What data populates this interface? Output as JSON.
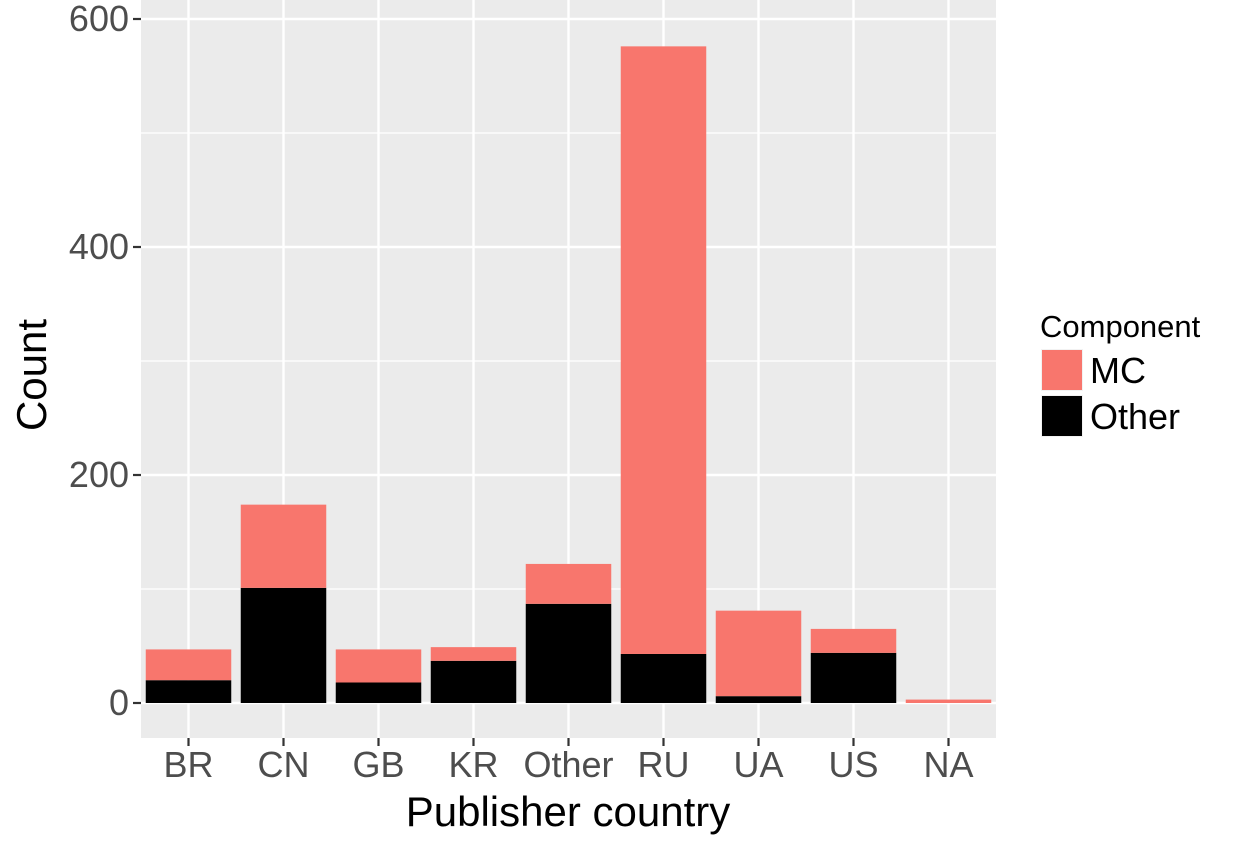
{
  "chart_data": {
    "type": "bar",
    "stacked": true,
    "categories": [
      "BR",
      "CN",
      "GB",
      "KR",
      "Other",
      "RU",
      "UA",
      "US",
      "NA"
    ],
    "series": [
      {
        "name": "Other",
        "values": [
          20,
          101,
          18,
          37,
          87,
          43,
          6,
          44,
          0
        ]
      },
      {
        "name": "MC",
        "values": [
          27,
          73,
          29,
          12,
          35,
          533,
          75,
          21,
          3
        ]
      }
    ],
    "xlabel": "Publisher country",
    "ylabel": "Count",
    "ylim": [
      -25,
      600
    ],
    "yticks": [
      0,
      200,
      400,
      600
    ],
    "legend": {
      "title": "Component",
      "placement": "right",
      "order": [
        "MC",
        "Other"
      ]
    },
    "colors": {
      "MC": "#F8766D",
      "Other": "#000000",
      "panel": "#EBEBEB",
      "grid": "#FFFFFF"
    },
    "grid": true
  }
}
